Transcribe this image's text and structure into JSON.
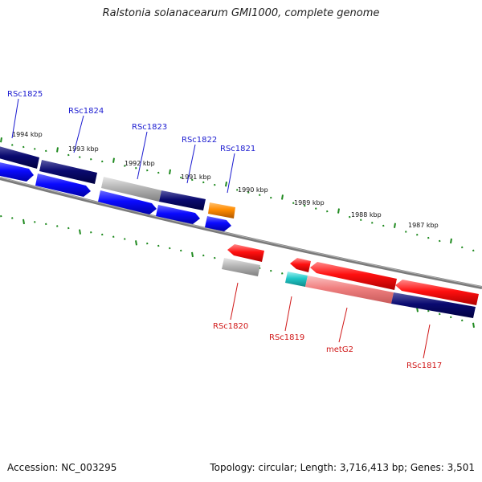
{
  "title": "Ralstonia solanacearum GMI1000, complete genome",
  "footer": {
    "accession": "Accession: NC_003295",
    "topology": "Topology: circular; Length: 3,716,413 bp; Genes: 3,501"
  },
  "ruler_labels": [
    "1994 kbp",
    "1993 kbp",
    "1992 kbp",
    "1991 kbp",
    "1990 kbp",
    "1989 kbp",
    "1988 kbp",
    "1987 kbp"
  ],
  "gene_labels": {
    "forward": [
      "RSc1825",
      "RSc1824",
      "RSc1823",
      "RSc1822",
      "RSc1821"
    ],
    "reverse": [
      "RSc1820",
      "RSc1819",
      "metG2",
      "RSc1817"
    ]
  },
  "colors": {
    "forward_cds": "#0a0aff",
    "dark_feature": "#0a0a70",
    "reverse_cds": "#ff1010",
    "light_red": "#f08080",
    "gray_feature": "#b4b4b4",
    "orange_feature": "#ff8c00",
    "cyan_feature": "#20c8c8",
    "blue_label": "#1a1ad0",
    "red_label": "#d01818",
    "tick_green": "#1f8a1f",
    "backbone": "#7a7a7a"
  }
}
